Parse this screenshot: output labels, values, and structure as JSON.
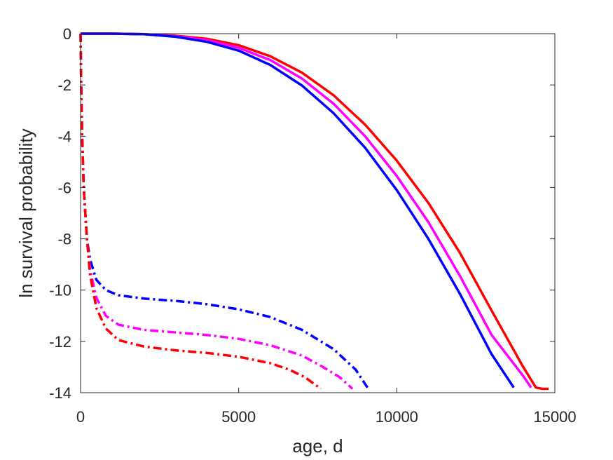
{
  "chart_data": {
    "type": "line",
    "title": "",
    "xlabel": "age, d",
    "ylabel": "ln survival probability",
    "xlim": [
      0,
      15000
    ],
    "ylim": [
      -14,
      0
    ],
    "xticks": [
      0,
      5000,
      10000,
      15000
    ],
    "yticks": [
      0,
      -2,
      -4,
      -6,
      -8,
      -10,
      -12,
      -14
    ],
    "xtick_labels": [
      "0",
      "5000",
      "10000",
      "15000"
    ],
    "ytick_labels": [
      "0",
      "-2",
      "-4",
      "-6",
      "-8",
      "-10",
      "-12",
      "-14"
    ],
    "grid": false,
    "legend": "none",
    "series": [
      {
        "color": "#ff0000",
        "style": "solid",
        "x": [
          0,
          1000,
          2000,
          3000,
          4000,
          5000,
          6000,
          7000,
          8000,
          9000,
          10000,
          11000,
          12000,
          13000,
          14000,
          14400,
          14600,
          14800
        ],
        "y": [
          0,
          0,
          -0.02,
          -0.08,
          -0.2,
          -0.45,
          -0.88,
          -1.52,
          -2.4,
          -3.55,
          -4.95,
          -6.6,
          -8.55,
          -10.8,
          -13.0,
          -13.8,
          -13.85,
          -13.85
        ]
      },
      {
        "color": "#ff00ff",
        "style": "solid",
        "x": [
          0,
          1000,
          2000,
          3000,
          4000,
          5000,
          6000,
          7000,
          8000,
          9000,
          10000,
          11000,
          12000,
          13000,
          14000,
          14250
        ],
        "y": [
          0,
          0,
          -0.02,
          -0.1,
          -0.25,
          -0.55,
          -1.03,
          -1.75,
          -2.73,
          -4.0,
          -5.55,
          -7.35,
          -9.45,
          -11.75,
          -13.35,
          -13.8
        ]
      },
      {
        "color": "#0000ff",
        "style": "solid",
        "x": [
          0,
          1000,
          2000,
          3000,
          4000,
          5000,
          6000,
          7000,
          8000,
          9000,
          10000,
          11000,
          12000,
          13000,
          13700
        ],
        "y": [
          0,
          0,
          -0.02,
          -0.12,
          -0.32,
          -0.66,
          -1.22,
          -2.02,
          -3.1,
          -4.45,
          -6.1,
          -8.0,
          -10.15,
          -12.5,
          -13.8
        ]
      },
      {
        "color": "#0000ff",
        "style": "dashdot",
        "x": [
          0,
          20,
          50,
          100,
          200,
          300,
          500,
          800,
          1200,
          2000,
          3000,
          4000,
          5000,
          6000,
          7000,
          8000,
          8700,
          9100
        ],
        "y": [
          0,
          -2,
          -4,
          -6,
          -8,
          -8.8,
          -9.6,
          -10.0,
          -10.2,
          -10.33,
          -10.42,
          -10.55,
          -10.75,
          -11.05,
          -11.55,
          -12.3,
          -13.1,
          -13.85
        ]
      },
      {
        "color": "#ff00ff",
        "style": "dashdot",
        "x": [
          0,
          20,
          50,
          100,
          200,
          300,
          500,
          800,
          1200,
          2000,
          3000,
          4000,
          5000,
          6000,
          7000,
          7600,
          8200,
          8600
        ],
        "y": [
          0,
          -2,
          -4,
          -6,
          -8,
          -9.2,
          -10.3,
          -11.0,
          -11.35,
          -11.55,
          -11.65,
          -11.75,
          -11.9,
          -12.15,
          -12.55,
          -12.95,
          -13.4,
          -13.85
        ]
      },
      {
        "color": "#ff0000",
        "style": "dashdot",
        "x": [
          0,
          20,
          50,
          100,
          200,
          300,
          500,
          800,
          1200,
          2000,
          3000,
          4000,
          5000,
          6000,
          6600,
          7100,
          7600
        ],
        "y": [
          0,
          -2,
          -4,
          -6,
          -8,
          -9.4,
          -10.7,
          -11.5,
          -11.95,
          -12.2,
          -12.35,
          -12.45,
          -12.6,
          -12.85,
          -13.1,
          -13.4,
          -13.85
        ]
      }
    ]
  }
}
